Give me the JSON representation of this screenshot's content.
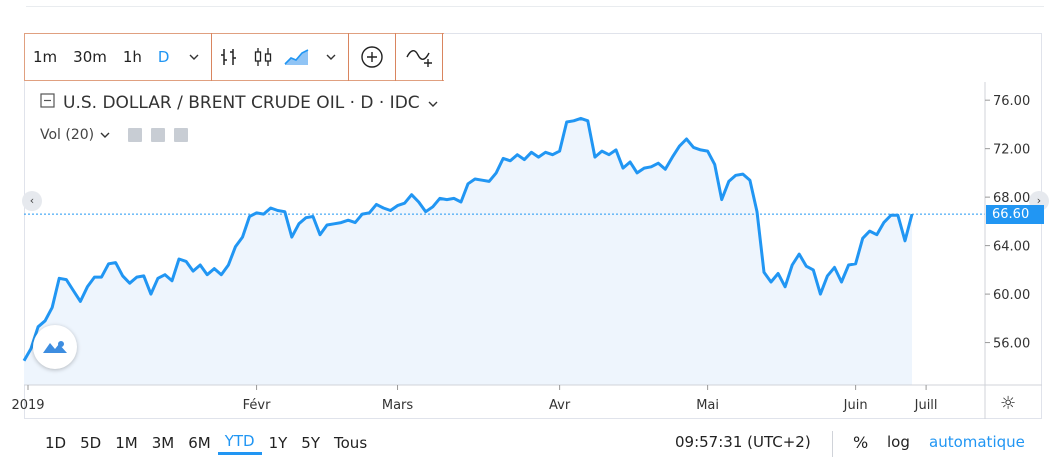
{
  "toolbar": {
    "intervals": [
      "1m",
      "30m",
      "1h",
      "D"
    ],
    "active_interval": "D"
  },
  "legend": {
    "title": "U.S. DOLLAR / BRENT CRUDE OIL · D · IDC",
    "volume": "Vol (20)"
  },
  "current_price": "66.60",
  "bottom": {
    "ranges": [
      "1D",
      "5D",
      "1M",
      "3M",
      "6M",
      "YTD",
      "1Y",
      "5Y",
      "Tous"
    ],
    "active_range": "YTD",
    "time": "09:57:31 (UTC+2)",
    "percent": "%",
    "log": "log",
    "auto": "automatique"
  },
  "chart_data": {
    "type": "area",
    "title": "U.S. DOLLAR / BRENT CRUDE OIL · D · IDC",
    "x_ticks": [
      "2019",
      "Févr",
      "Mars",
      "Avr",
      "Mai",
      "Juin",
      "Juill"
    ],
    "y_ticks": [
      "76.00",
      "72.00",
      "68.00",
      "64.00",
      "60.00",
      "56.00"
    ],
    "ylim": [
      52.5,
      77.5
    ],
    "colors": {
      "line": "#2196f3",
      "fill": "#eef5fd",
      "price_line": "#2196f3"
    },
    "series": [
      {
        "values": [
          54.5,
          55.5,
          57.3,
          57.8,
          58.9,
          61.3,
          61.2,
          60.3,
          59.4,
          60.6,
          61.4,
          61.4,
          62.5,
          62.6,
          61.5,
          60.9,
          61.4,
          61.5,
          60.0,
          61.3,
          61.6,
          61.1,
          62.9,
          62.7,
          61.9,
          62.4,
          61.6,
          62.1,
          61.6,
          62.4,
          63.9,
          64.7,
          66.4,
          66.7,
          66.6,
          67.1,
          66.9,
          66.8,
          64.7,
          65.8,
          66.3,
          66.4,
          64.9,
          65.7,
          65.8,
          65.9,
          66.1,
          65.9,
          66.6,
          66.7,
          67.4,
          67.1,
          66.9,
          67.3,
          67.5,
          68.2,
          67.6,
          66.8,
          67.2,
          67.9,
          67.8,
          67.9,
          67.6,
          69.1,
          69.5,
          69.4,
          69.3,
          70.0,
          71.2,
          71.0,
          71.5,
          71.1,
          71.7,
          71.3,
          71.7,
          71.5,
          71.8,
          74.2,
          74.3,
          74.5,
          74.3,
          71.3,
          71.8,
          71.5,
          71.9,
          70.4,
          70.9,
          70.0,
          70.4,
          70.5,
          70.8,
          70.3,
          71.3,
          72.2,
          72.8,
          72.1,
          71.9,
          71.8,
          70.7,
          67.8,
          69.3,
          69.8,
          69.9,
          69.4,
          66.8,
          61.8,
          61.0,
          61.7,
          60.6,
          62.4,
          63.3,
          62.3,
          62.0,
          60.0,
          61.5,
          62.2,
          61.0,
          62.4,
          62.5,
          64.6,
          65.2,
          64.9,
          65.9,
          66.5,
          66.5,
          64.4,
          66.6
        ]
      }
    ]
  }
}
